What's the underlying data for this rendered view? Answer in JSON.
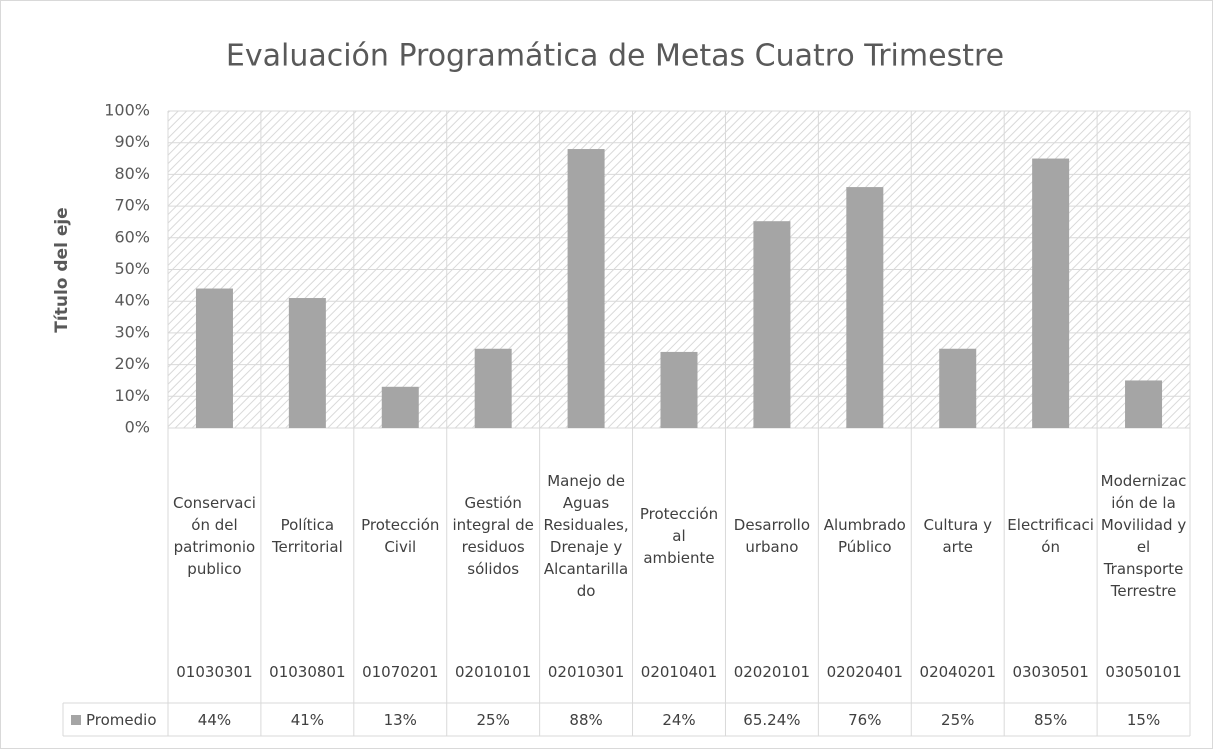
{
  "chart_data": {
    "type": "bar",
    "title": "Evaluación Programática de Metas Cuatro Trimestre",
    "y_axis_label": "Título del eje",
    "categories": [
      "Conservación del patrimonio publico",
      "Política Territorial",
      "Protección Civil",
      "Gestión integral de residuos sólidos",
      "Manejo de Aguas Residuales, Drenaje y Alcantarillado",
      "Protección al ambiente",
      "Desarrollo urbano",
      "Alumbrado Público",
      "Cultura y arte",
      "Electrificación",
      "Modernización de la Movilidad y el Transporte Terrestre"
    ],
    "category_codes": [
      "01030301",
      "01030801",
      "01070201",
      "02010101",
      "02010301",
      "02010401",
      "02020101",
      "02020401",
      "02040201",
      "03030501",
      "03050101"
    ],
    "series": [
      {
        "name": "Promedio",
        "color": "#a5a5a5",
        "values": [
          44,
          41,
          13,
          25,
          88,
          24,
          65.24,
          76,
          25,
          85,
          15
        ],
        "value_labels": [
          "44%",
          "41%",
          "13%",
          "25%",
          "88%",
          "24%",
          "65.24%",
          "76%",
          "25%",
          "85%",
          "15%"
        ]
      }
    ],
    "ylim": [
      0,
      100
    ],
    "yticks": [
      {
        "value": 0,
        "label": "0%"
      },
      {
        "value": 10,
        "label": "10%"
      },
      {
        "value": 20,
        "label": "20%"
      },
      {
        "value": 30,
        "label": "30%"
      },
      {
        "value": 40,
        "label": "40%"
      },
      {
        "value": 50,
        "label": "50%"
      },
      {
        "value": 60,
        "label": "60%"
      },
      {
        "value": 70,
        "label": "70%"
      },
      {
        "value": 80,
        "label": "80%"
      },
      {
        "value": 90,
        "label": "90%"
      },
      {
        "value": 100,
        "label": "100%"
      }
    ],
    "grid": true
  }
}
